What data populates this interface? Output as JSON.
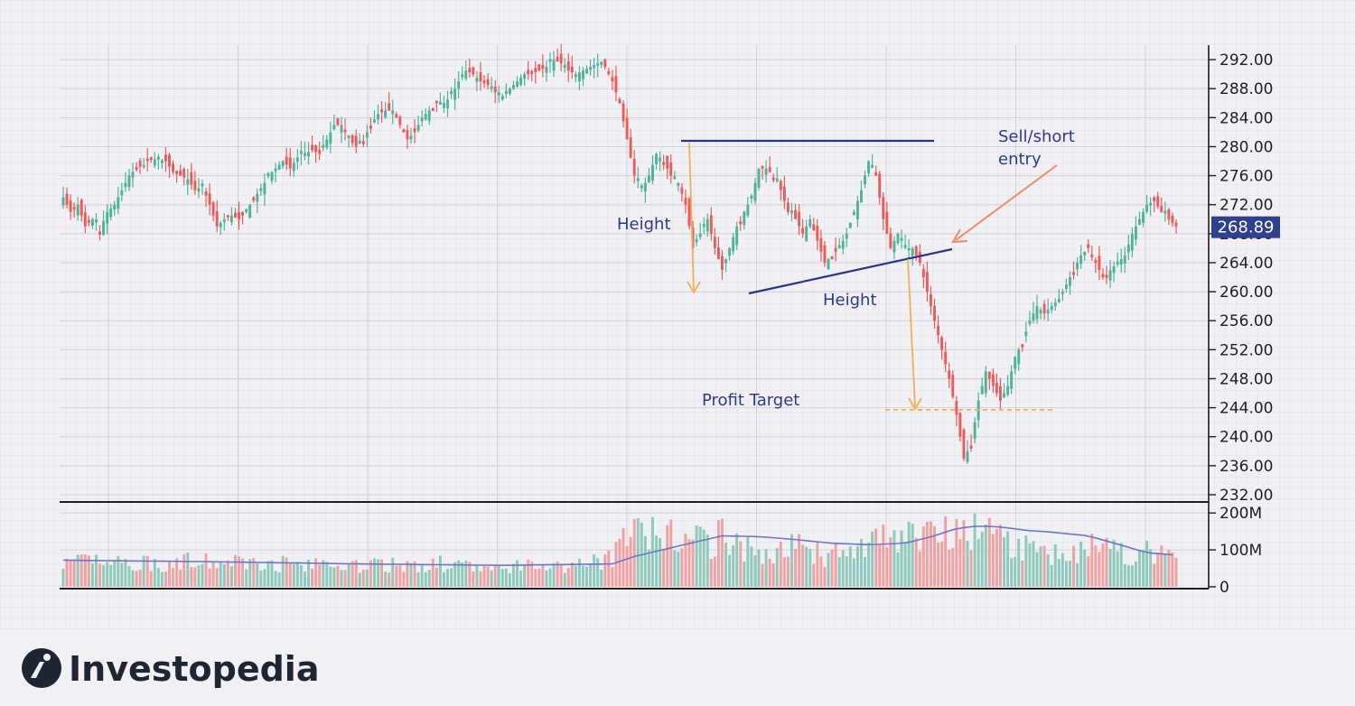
{
  "chart_data": {
    "type": "candlestick",
    "price_axis": {
      "ylim": [
        231,
        294
      ],
      "ticks": [
        "292.00",
        "288.00",
        "284.00",
        "280.00",
        "276.00",
        "272.00",
        "268.00",
        "264.00",
        "260.00",
        "256.00",
        "252.00",
        "248.00",
        "244.00",
        "240.00",
        "236.00",
        "232.00"
      ]
    },
    "volume_axis": {
      "ylim": [
        -5,
        220
      ],
      "ticks": [
        "200M",
        "100M",
        "0"
      ]
    },
    "last_price_label": "268.89",
    "price_path": [
      [
        0,
        273
      ],
      [
        2,
        271
      ],
      [
        4,
        272
      ],
      [
        6,
        269
      ],
      [
        8,
        270
      ],
      [
        10,
        268.5
      ],
      [
        12,
        271
      ],
      [
        14,
        272
      ],
      [
        16,
        274
      ],
      [
        18,
        276
      ],
      [
        20,
        277
      ],
      [
        22,
        277.5
      ],
      [
        24,
        278.5
      ],
      [
        26,
        278
      ],
      [
        28,
        278
      ],
      [
        30,
        276.5
      ],
      [
        32,
        276
      ],
      [
        34,
        275.5
      ],
      [
        36,
        274
      ],
      [
        38,
        274.5
      ],
      [
        40,
        272
      ],
      [
        42,
        269
      ],
      [
        44,
        270
      ],
      [
        46,
        270.5
      ],
      [
        48,
        270
      ],
      [
        50,
        271
      ],
      [
        52,
        273
      ],
      [
        54,
        274
      ],
      [
        56,
        276
      ],
      [
        58,
        277
      ],
      [
        60,
        278
      ],
      [
        62,
        277
      ],
      [
        64,
        278.5
      ],
      [
        66,
        279
      ],
      [
        68,
        279.5
      ],
      [
        70,
        279
      ],
      [
        72,
        281
      ],
      [
        74,
        283
      ],
      [
        76,
        283
      ],
      [
        78,
        281
      ],
      [
        80,
        280
      ],
      [
        82,
        281
      ],
      [
        84,
        283
      ],
      [
        86,
        284.5
      ],
      [
        88,
        285
      ],
      [
        90,
        285
      ],
      [
        92,
        283
      ],
      [
        94,
        281
      ],
      [
        96,
        282
      ],
      [
        98,
        284
      ],
      [
        100,
        285
      ],
      [
        102,
        286
      ],
      [
        104,
        286
      ],
      [
        106,
        287
      ],
      [
        108,
        289
      ],
      [
        110,
        290.5
      ],
      [
        112,
        290
      ],
      [
        114,
        289
      ],
      [
        116,
        288.5
      ],
      [
        118,
        287.5
      ],
      [
        120,
        287
      ],
      [
        122,
        288
      ],
      [
        124,
        289
      ],
      [
        126,
        290
      ],
      [
        128,
        290
      ],
      [
        130,
        290.5
      ],
      [
        132,
        291
      ],
      [
        134,
        292
      ],
      [
        136,
        291.5
      ],
      [
        138,
        290.5
      ],
      [
        140,
        290
      ],
      [
        142,
        290.5
      ],
      [
        144,
        291
      ],
      [
        146,
        291.5
      ],
      [
        148,
        291
      ],
      [
        150,
        289
      ],
      [
        152,
        286
      ],
      [
        154,
        281
      ],
      [
        156,
        276
      ],
      [
        158,
        274
      ],
      [
        160,
        276
      ],
      [
        162,
        279
      ],
      [
        164,
        278
      ],
      [
        166,
        276
      ],
      [
        168,
        275
      ],
      [
        170,
        272
      ],
      [
        172,
        266
      ],
      [
        174,
        268
      ],
      [
        176,
        270
      ],
      [
        178,
        266
      ],
      [
        180,
        263
      ],
      [
        182,
        266
      ],
      [
        184,
        269
      ],
      [
        186,
        271
      ],
      [
        188,
        273
      ],
      [
        190,
        277
      ],
      [
        192,
        277
      ],
      [
        194,
        276
      ],
      [
        196,
        274
      ],
      [
        198,
        271
      ],
      [
        200,
        270
      ],
      [
        202,
        268
      ],
      [
        204,
        270
      ],
      [
        206,
        267
      ],
      [
        208,
        264
      ],
      [
        210,
        265
      ],
      [
        212,
        266
      ],
      [
        214,
        268
      ],
      [
        216,
        271
      ],
      [
        218,
        274
      ],
      [
        220,
        278
      ],
      [
        222,
        276
      ],
      [
        224,
        270
      ],
      [
        226,
        266
      ],
      [
        228,
        268
      ],
      [
        230,
        266
      ],
      [
        232,
        266
      ],
      [
        234,
        264
      ],
      [
        236,
        260
      ],
      [
        238,
        256
      ],
      [
        240,
        252
      ],
      [
        242,
        248
      ],
      [
        244,
        243
      ],
      [
        246,
        237
      ],
      [
        248,
        239
      ],
      [
        250,
        245
      ],
      [
        252,
        249
      ],
      [
        254,
        247
      ],
      [
        256,
        245
      ],
      [
        258,
        247
      ],
      [
        260,
        251
      ],
      [
        262,
        253
      ],
      [
        264,
        256
      ],
      [
        266,
        258
      ],
      [
        268,
        257
      ],
      [
        270,
        258
      ],
      [
        272,
        259
      ],
      [
        274,
        261
      ],
      [
        276,
        263
      ],
      [
        278,
        265
      ],
      [
        280,
        266
      ],
      [
        282,
        264
      ],
      [
        284,
        262
      ],
      [
        286,
        263
      ],
      [
        288,
        264
      ],
      [
        290,
        265
      ],
      [
        292,
        268
      ],
      [
        294,
        270
      ],
      [
        296,
        272
      ],
      [
        298,
        272.5
      ],
      [
        300,
        271
      ],
      [
        302,
        270
      ],
      [
        304,
        269
      ]
    ],
    "volume_path": [
      [
        0,
        70
      ],
      [
        8,
        75
      ],
      [
        16,
        72
      ],
      [
        24,
        70
      ],
      [
        32,
        75
      ],
      [
        40,
        72
      ],
      [
        48,
        80
      ],
      [
        56,
        72
      ],
      [
        64,
        68
      ],
      [
        72,
        70
      ],
      [
        80,
        66
      ],
      [
        88,
        64
      ],
      [
        96,
        66
      ],
      [
        104,
        68
      ],
      [
        112,
        60
      ],
      [
        120,
        62
      ],
      [
        128,
        64
      ],
      [
        136,
        66
      ],
      [
        144,
        68
      ],
      [
        150,
        95
      ],
      [
        152,
        105
      ],
      [
        154,
        175
      ],
      [
        156,
        185
      ],
      [
        160,
        150
      ],
      [
        166,
        160
      ],
      [
        170,
        140
      ],
      [
        176,
        130
      ],
      [
        180,
        155
      ],
      [
        184,
        130
      ],
      [
        188,
        105
      ],
      [
        192,
        100
      ],
      [
        196,
        120
      ],
      [
        200,
        130
      ],
      [
        204,
        115
      ],
      [
        208,
        95
      ],
      [
        212,
        100
      ],
      [
        216,
        110
      ],
      [
        220,
        118
      ],
      [
        224,
        150
      ],
      [
        228,
        130
      ],
      [
        232,
        150
      ],
      [
        236,
        165
      ],
      [
        240,
        175
      ],
      [
        244,
        190
      ],
      [
        248,
        170
      ],
      [
        252,
        160
      ],
      [
        256,
        150
      ],
      [
        260,
        130
      ],
      [
        264,
        110
      ],
      [
        268,
        100
      ],
      [
        272,
        105
      ],
      [
        276,
        115
      ],
      [
        280,
        118
      ],
      [
        284,
        110
      ],
      [
        288,
        100
      ],
      [
        292,
        104
      ],
      [
        296,
        105
      ],
      [
        300,
        95
      ],
      [
        304,
        80
      ]
    ],
    "volume_ma_path": [
      [
        0,
        72
      ],
      [
        40,
        68
      ],
      [
        80,
        62
      ],
      [
        120,
        58
      ],
      [
        150,
        62
      ],
      [
        156,
        82
      ],
      [
        170,
        115
      ],
      [
        180,
        138
      ],
      [
        190,
        136
      ],
      [
        200,
        128
      ],
      [
        210,
        118
      ],
      [
        220,
        114
      ],
      [
        230,
        118
      ],
      [
        238,
        138
      ],
      [
        244,
        158
      ],
      [
        250,
        165
      ],
      [
        256,
        162
      ],
      [
        264,
        152
      ],
      [
        270,
        148
      ],
      [
        280,
        138
      ],
      [
        290,
        110
      ],
      [
        296,
        92
      ],
      [
        304,
        86
      ]
    ],
    "annotations": {
      "height_left": "Height",
      "height_bottom": "Height",
      "sell_short_line1": "Sell/short",
      "sell_short_line2": "entry",
      "profit_target": "Profit Target"
    },
    "colors": {
      "up": "#4fb39a",
      "down": "#ee5a5a",
      "vol_up": "#8ec9bc",
      "vol_down": "#f0a2a2",
      "pattern_line": "#26358d",
      "arrow": "#f5ad55",
      "sell_arrow": "#f08a68",
      "ma_line": "#6c77c9",
      "label_bg": "#2f3f92"
    },
    "grid": true
  },
  "brand": {
    "name": "Investopedia"
  }
}
